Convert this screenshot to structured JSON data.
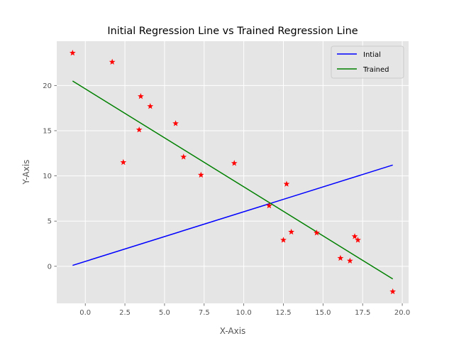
{
  "chart_data": {
    "type": "scatter",
    "title": "Initial Regression Line vs Trained Regression Line",
    "xlabel": "X-Axis",
    "ylabel": "Y-Axis",
    "xlim": [
      -1.8,
      20.4
    ],
    "ylim": [
      -4.1,
      24.9
    ],
    "xticks": [
      0.0,
      2.5,
      5.0,
      7.5,
      10.0,
      12.5,
      15.0,
      17.5,
      20.0
    ],
    "xtick_labels": [
      "0.0",
      "2.5",
      "5.0",
      "7.5",
      "10.0",
      "12.5",
      "15.0",
      "17.5",
      "20.0"
    ],
    "yticks": [
      0,
      5,
      10,
      15,
      20
    ],
    "ytick_labels": [
      "0",
      "5",
      "10",
      "15",
      "20"
    ],
    "grid": true,
    "legend_position": "top-right",
    "points": [
      {
        "x": -0.8,
        "y": 23.6
      },
      {
        "x": 1.7,
        "y": 22.6
      },
      {
        "x": 2.4,
        "y": 11.5
      },
      {
        "x": 3.4,
        "y": 15.1
      },
      {
        "x": 3.5,
        "y": 18.8
      },
      {
        "x": 4.1,
        "y": 17.7
      },
      {
        "x": 5.7,
        "y": 15.8
      },
      {
        "x": 6.2,
        "y": 12.1
      },
      {
        "x": 7.3,
        "y": 10.1
      },
      {
        "x": 9.4,
        "y": 11.4
      },
      {
        "x": 11.6,
        "y": 6.7
      },
      {
        "x": 12.5,
        "y": 2.9
      },
      {
        "x": 12.7,
        "y": 9.1
      },
      {
        "x": 13.0,
        "y": 3.8
      },
      {
        "x": 14.6,
        "y": 3.7
      },
      {
        "x": 16.1,
        "y": 0.9
      },
      {
        "x": 16.7,
        "y": 0.6
      },
      {
        "x": 17.0,
        "y": 3.3
      },
      {
        "x": 17.2,
        "y": 2.9
      },
      {
        "x": 19.4,
        "y": -2.8
      }
    ],
    "points_color": "#ff0000",
    "series": [
      {
        "name": "Intial",
        "color": "#0000ff",
        "x": [
          -0.8,
          19.4
        ],
        "y": [
          0.1,
          11.2
        ]
      },
      {
        "name": "Trained",
        "color": "#008000",
        "x": [
          -0.8,
          19.4
        ],
        "y": [
          20.5,
          -1.4
        ]
      }
    ]
  }
}
